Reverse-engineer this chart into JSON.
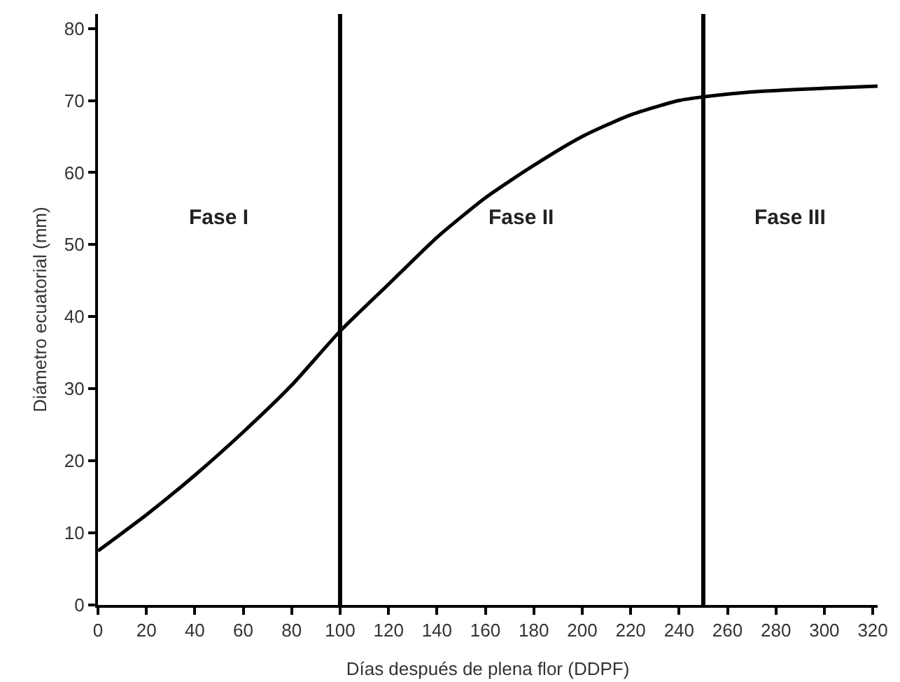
{
  "chart_data": {
    "type": "line",
    "xlabel": "Días después de plena flor (DDPF)",
    "ylabel": "Diámetro ecuatorial (mm)",
    "x": [
      0,
      20,
      40,
      60,
      80,
      100,
      120,
      140,
      160,
      180,
      200,
      220,
      240,
      250,
      270,
      300,
      322
    ],
    "series": [
      {
        "color": "#000000",
        "values": [
          7.5,
          12.5,
          18,
          24,
          30.5,
          38,
          44.5,
          51,
          56.5,
          61,
          65,
          68,
          70,
          70.5,
          71.2,
          71.7,
          72
        ]
      }
    ],
    "xlim": [
      0,
      322
    ],
    "ylim": [
      0,
      82
    ],
    "xticks": [
      0,
      20,
      40,
      60,
      80,
      100,
      120,
      140,
      160,
      180,
      200,
      220,
      240,
      260,
      280,
      300,
      320
    ],
    "yticks": [
      0,
      10,
      20,
      30,
      40,
      50,
      60,
      70,
      80
    ],
    "ref_lines": [
      {
        "axis": "x",
        "value": 100,
        "color": "#000000"
      },
      {
        "axis": "x",
        "value": 250,
        "color": "#000000"
      }
    ],
    "annotations": [
      "Fase I",
      "Fase II",
      "Fase III"
    ],
    "marker": "none",
    "line_style": "solid"
  }
}
